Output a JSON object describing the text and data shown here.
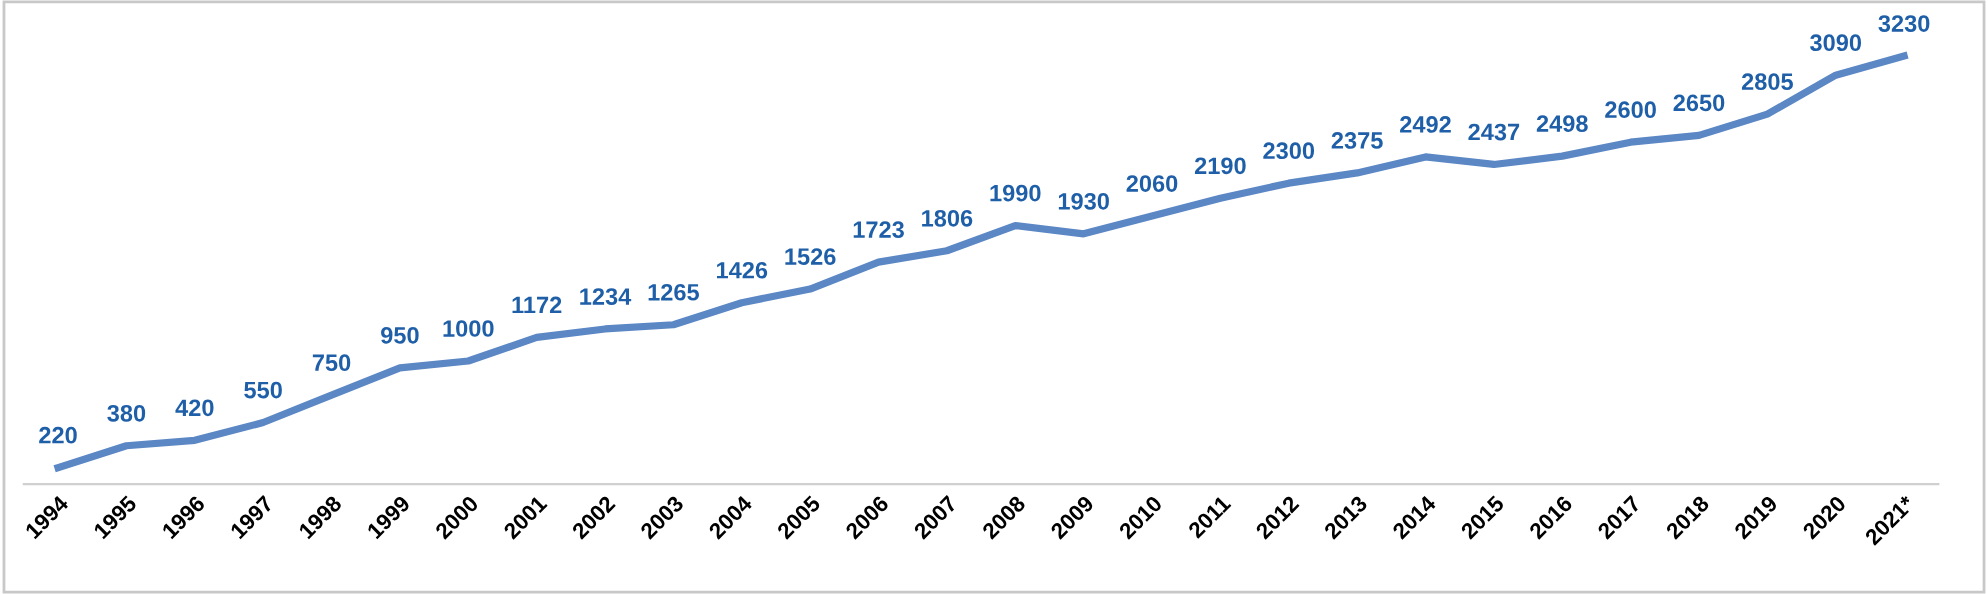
{
  "chart_data": {
    "type": "line",
    "categories": [
      "1994",
      "1995",
      "1996",
      "1997",
      "1998",
      "1999",
      "2000",
      "2001",
      "2002",
      "2003",
      "2004",
      "2005",
      "2006",
      "2007",
      "2008",
      "2009",
      "2010",
      "2011",
      "2012",
      "2013",
      "2014",
      "2015",
      "2016",
      "2017",
      "2018",
      "2019",
      "2020",
      "2021*"
    ],
    "series": [
      {
        "color": "#5b87c5",
        "values": [
          220,
          380,
          420,
          550,
          750,
          950,
          1000,
          1172,
          1234,
          1265,
          1426,
          1526,
          1723,
          1806,
          1990,
          1930,
          2060,
          2190,
          2300,
          2375,
          2492,
          2437,
          2498,
          2600,
          2650,
          2805,
          3090,
          3230
        ]
      }
    ],
    "data_labels": true,
    "tick_labels": "x",
    "grid": false,
    "legend": false,
    "marker": "none",
    "line_style": "solid"
  }
}
